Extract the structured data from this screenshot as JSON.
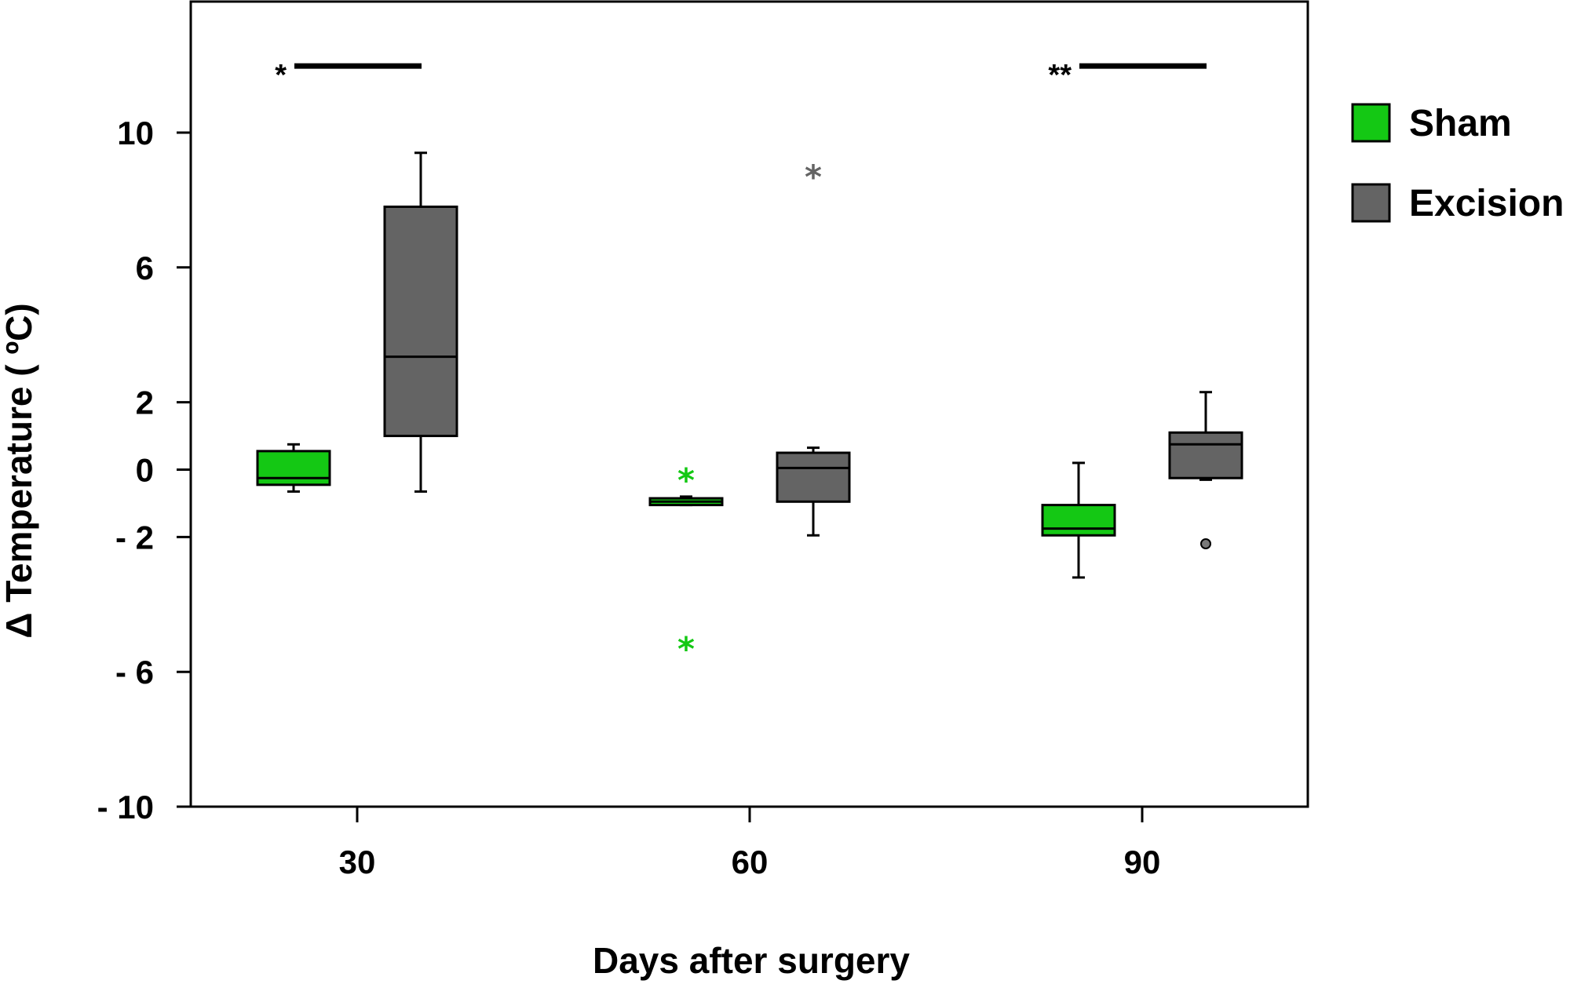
{
  "chart_data": {
    "type": "box",
    "title": "",
    "xlabel": "Days after surgery",
    "ylabel": "Δ Temperature ( ºC)",
    "ylim": [
      -10,
      14
    ],
    "yticks": [
      10,
      6,
      2,
      0,
      -2,
      -6,
      -10
    ],
    "ytick_labels": [
      "10",
      "6",
      "2",
      "0",
      "- 2",
      "- 6",
      "- 10"
    ],
    "categories": [
      "30",
      "60",
      "90"
    ],
    "legend_position": "right",
    "series": [
      {
        "name": "Sham",
        "color": "#14c814",
        "boxes": [
          {
            "category": "30",
            "whisker_low": -0.65,
            "q1": -0.45,
            "median": -0.25,
            "q3": 0.55,
            "whisker_high": 0.75,
            "outliers": []
          },
          {
            "category": "60",
            "whisker_low": -1.05,
            "q1": -1.05,
            "median": -0.95,
            "q3": -0.85,
            "whisker_high": -0.8,
            "outliers": [
              {
                "value": 0.0,
                "marker": "*"
              },
              {
                "value": -5.0,
                "marker": "*"
              }
            ]
          },
          {
            "category": "90",
            "whisker_low": -3.2,
            "q1": -1.95,
            "median": -1.75,
            "q3": -1.05,
            "whisker_high": 0.2,
            "outliers": []
          }
        ]
      },
      {
        "name": "Excision",
        "color": "#646464",
        "boxes": [
          {
            "category": "30",
            "whisker_low": -0.65,
            "q1": 1.0,
            "median": 3.35,
            "q3": 7.8,
            "whisker_high": 9.4,
            "outliers": []
          },
          {
            "category": "60",
            "whisker_low": -1.95,
            "q1": -0.95,
            "median": 0.05,
            "q3": 0.5,
            "whisker_high": 0.65,
            "outliers": [
              {
                "value": 9.0,
                "marker": "*"
              }
            ]
          },
          {
            "category": "90",
            "whisker_low": -0.3,
            "q1": -0.25,
            "median": 0.75,
            "q3": 1.1,
            "whisker_high": 2.3,
            "outliers": [
              {
                "value": -2.2,
                "marker": "o"
              }
            ]
          }
        ]
      }
    ],
    "significance": [
      {
        "category": "30",
        "label": "*",
        "y": 12
      },
      {
        "category": "90",
        "label": "**",
        "y": 12
      }
    ]
  }
}
